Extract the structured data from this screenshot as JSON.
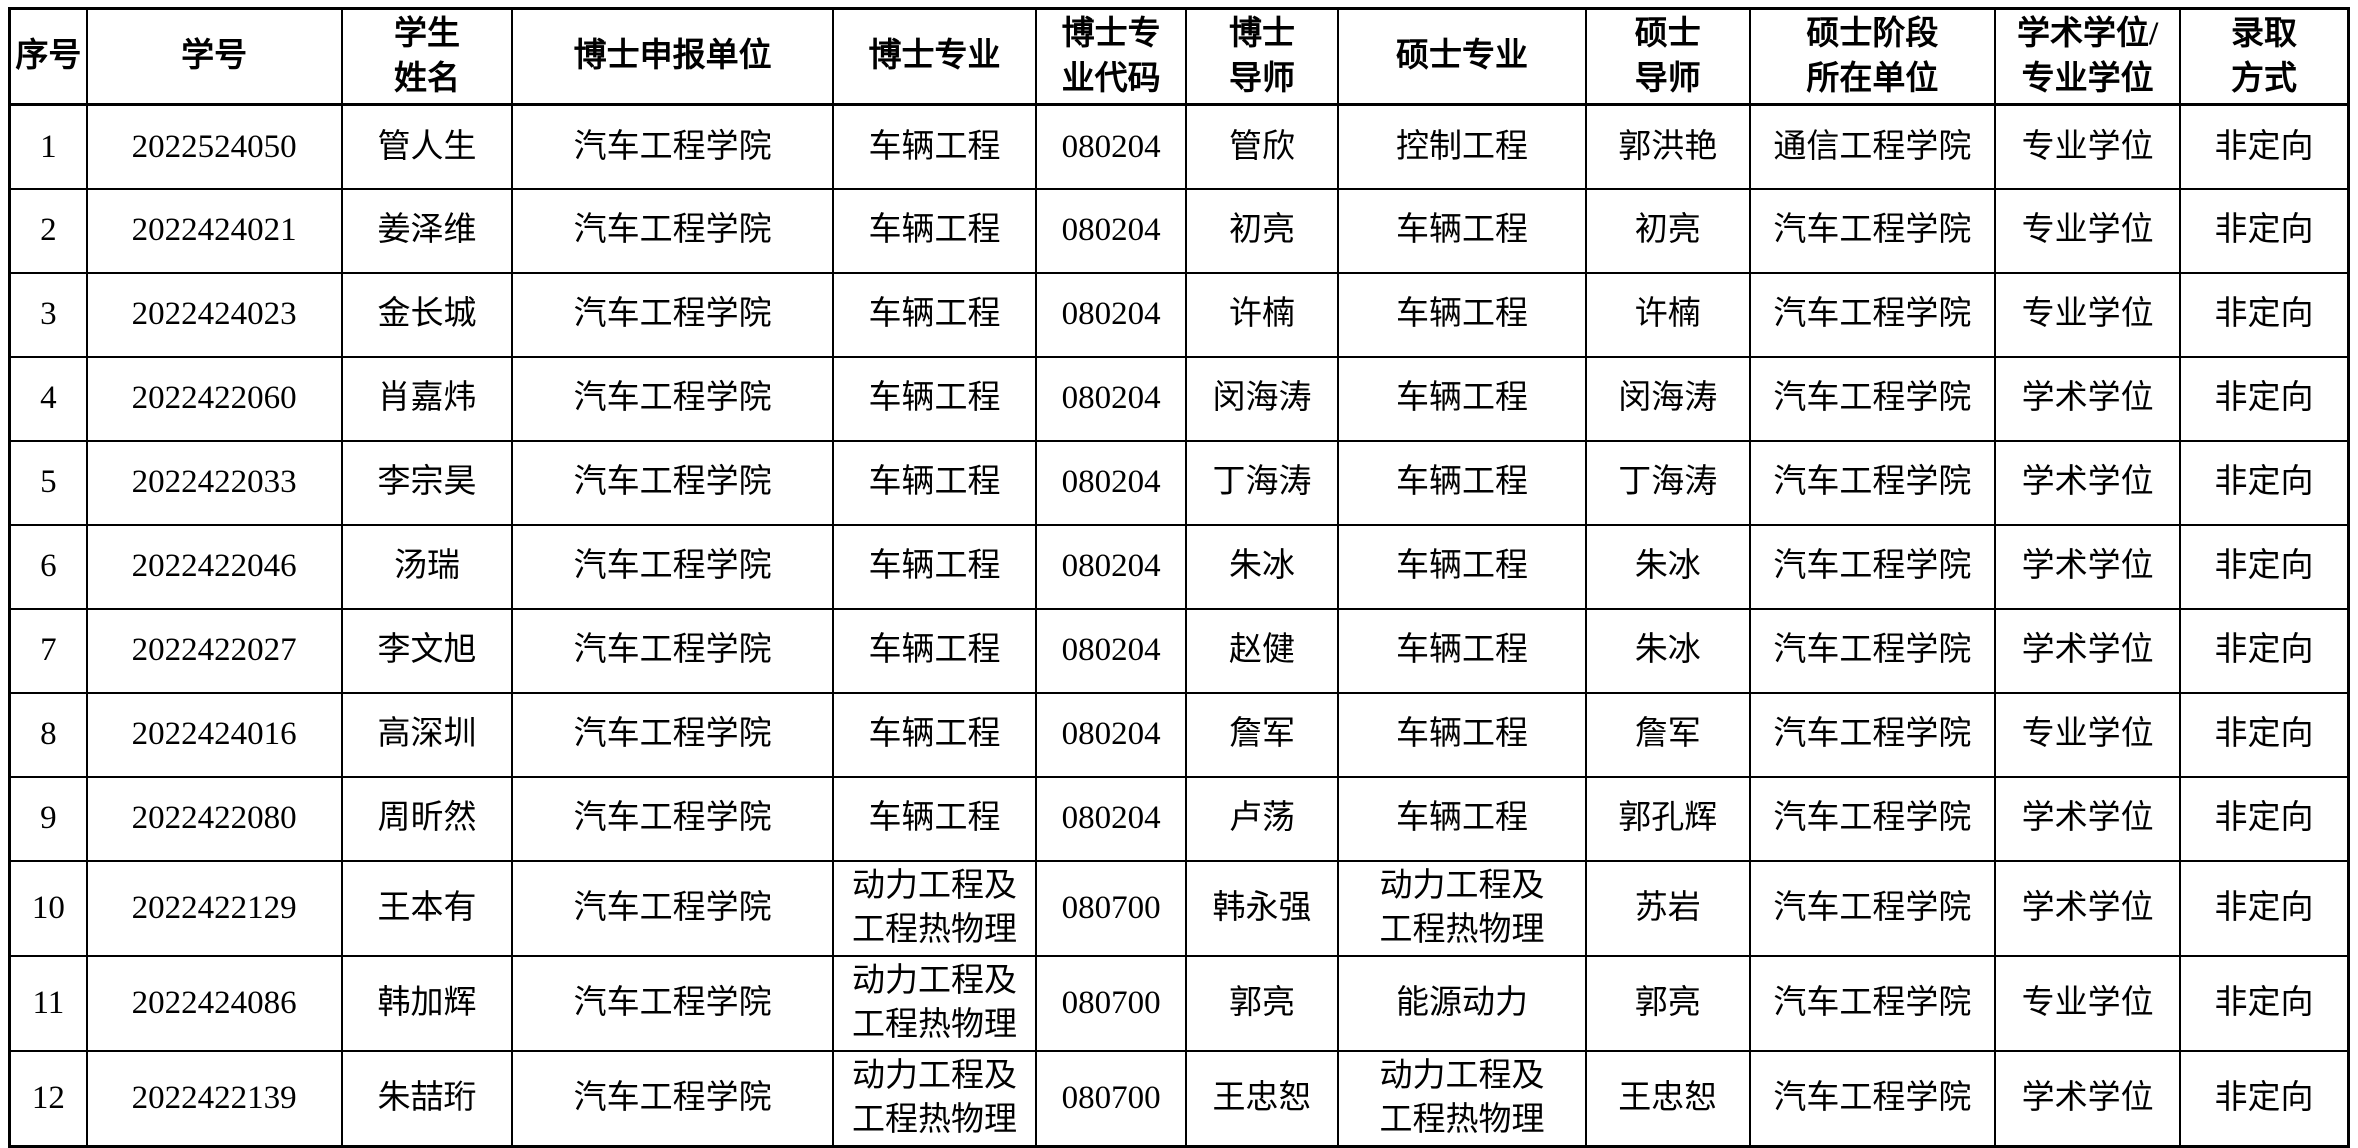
{
  "table": {
    "columns": [
      "序号",
      "学号",
      "学生\n姓名",
      "博士申报单位",
      "博士专业",
      "博士专\n业代码",
      "博士\n导师",
      "硕士专业",
      "硕士\n导师",
      "硕士阶段\n所在单位",
      "学术学位/\n专业学位",
      "录取\n方式"
    ],
    "rows": [
      [
        "1",
        "2022524050",
        "管人生",
        "汽车工程学院",
        "车辆工程",
        "080204",
        "管欣",
        "控制工程",
        "郭洪艳",
        "通信工程学院",
        "专业学位",
        "非定向"
      ],
      [
        "2",
        "2022424021",
        "姜泽维",
        "汽车工程学院",
        "车辆工程",
        "080204",
        "初亮",
        "车辆工程",
        "初亮",
        "汽车工程学院",
        "专业学位",
        "非定向"
      ],
      [
        "3",
        "2022424023",
        "金长城",
        "汽车工程学院",
        "车辆工程",
        "080204",
        "许楠",
        "车辆工程",
        "许楠",
        "汽车工程学院",
        "专业学位",
        "非定向"
      ],
      [
        "4",
        "2022422060",
        "肖嘉炜",
        "汽车工程学院",
        "车辆工程",
        "080204",
        "闵海涛",
        "车辆工程",
        "闵海涛",
        "汽车工程学院",
        "学术学位",
        "非定向"
      ],
      [
        "5",
        "2022422033",
        "李宗昊",
        "汽车工程学院",
        "车辆工程",
        "080204",
        "丁海涛",
        "车辆工程",
        "丁海涛",
        "汽车工程学院",
        "学术学位",
        "非定向"
      ],
      [
        "6",
        "2022422046",
        "汤瑞",
        "汽车工程学院",
        "车辆工程",
        "080204",
        "朱冰",
        "车辆工程",
        "朱冰",
        "汽车工程学院",
        "学术学位",
        "非定向"
      ],
      [
        "7",
        "2022422027",
        "李文旭",
        "汽车工程学院",
        "车辆工程",
        "080204",
        "赵健",
        "车辆工程",
        "朱冰",
        "汽车工程学院",
        "学术学位",
        "非定向"
      ],
      [
        "8",
        "2022424016",
        "高深圳",
        "汽车工程学院",
        "车辆工程",
        "080204",
        "詹军",
        "车辆工程",
        "詹军",
        "汽车工程学院",
        "专业学位",
        "非定向"
      ],
      [
        "9",
        "2022422080",
        "周昕然",
        "汽车工程学院",
        "车辆工程",
        "080204",
        "卢荡",
        "车辆工程",
        "郭孔辉",
        "汽车工程学院",
        "学术学位",
        "非定向"
      ],
      [
        "10",
        "2022422129",
        "王本有",
        "汽车工程学院",
        "动力工程及\n工程热物理",
        "080700",
        "韩永强",
        "动力工程及\n工程热物理",
        "苏岩",
        "汽车工程学院",
        "学术学位",
        "非定向"
      ],
      [
        "11",
        "2022424086",
        "韩加辉",
        "汽车工程学院",
        "动力工程及\n工程热物理",
        "080700",
        "郭亮",
        "能源动力",
        "郭亮",
        "汽车工程学院",
        "专业学位",
        "非定向"
      ],
      [
        "12",
        "2022422139",
        "朱喆珩",
        "汽车工程学院",
        "动力工程及\n工程热物理",
        "080700",
        "王忠恕",
        "动力工程及\n工程热物理",
        "王忠恕",
        "汽车工程学院",
        "学术学位",
        "非定向"
      ]
    ]
  },
  "colors": {
    "border": "#000000",
    "background": "#ffffff",
    "text": "#000000"
  }
}
